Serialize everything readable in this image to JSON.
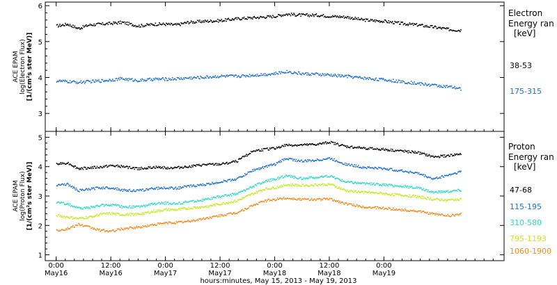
{
  "chart_data": [
    {
      "type": "scatter",
      "panel": "electron",
      "ylabel": [
        "ACE EPAM",
        "log(Electron Flux)",
        "[1/(cm²s ster MeV)]"
      ],
      "ylim": [
        2.5,
        6.1
      ],
      "yticks": [
        "3",
        "4",
        "5",
        "6"
      ],
      "xlim": [
        -0.1,
        4.1
      ],
      "legend": {
        "title": [
          "Electron",
          "Energy ran",
          "[keV]"
        ]
      },
      "series": [
        {
          "name": "38-53",
          "color": "#000000",
          "x": [
            0.0,
            0.1,
            0.2,
            0.3,
            0.4,
            0.5,
            0.6,
            0.75,
            0.9,
            1.0,
            1.1,
            1.2,
            1.35,
            1.5,
            1.65,
            1.8,
            1.9,
            2.0,
            2.1,
            2.25,
            2.4,
            2.5,
            2.65,
            2.8,
            3.0,
            3.15,
            3.3,
            3.45,
            3.6,
            3.7
          ],
          "y": [
            5.45,
            5.5,
            5.38,
            5.48,
            5.5,
            5.52,
            5.55,
            5.45,
            5.5,
            5.5,
            5.48,
            5.55,
            5.58,
            5.6,
            5.65,
            5.68,
            5.7,
            5.72,
            5.78,
            5.75,
            5.75,
            5.72,
            5.7,
            5.62,
            5.58,
            5.52,
            5.48,
            5.42,
            5.35,
            5.33
          ]
        },
        {
          "name": "175-315",
          "color": "#1e6fcf",
          "x": [
            0.0,
            0.1,
            0.2,
            0.3,
            0.4,
            0.5,
            0.6,
            0.75,
            0.9,
            1.0,
            1.1,
            1.2,
            1.35,
            1.5,
            1.65,
            1.8,
            1.9,
            2.0,
            2.1,
            2.25,
            2.4,
            2.5,
            2.65,
            2.8,
            3.0,
            3.15,
            3.3,
            3.45,
            3.6,
            3.7
          ],
          "y": [
            3.92,
            3.9,
            3.88,
            3.9,
            3.92,
            3.95,
            3.98,
            3.93,
            3.97,
            3.97,
            3.98,
            4.0,
            4.02,
            4.05,
            4.05,
            4.08,
            4.1,
            4.12,
            4.18,
            4.12,
            4.1,
            4.08,
            4.05,
            4.0,
            3.95,
            3.9,
            3.85,
            3.8,
            3.75,
            3.7
          ]
        }
      ]
    },
    {
      "type": "scatter",
      "panel": "proton",
      "ylabel": [
        "ACE EPAM",
        "log(Proton Flux)",
        "[1/(cm²s ster MeV)]"
      ],
      "ylim": [
        0.8,
        5.2
      ],
      "yticks": [
        "1",
        "2",
        "3",
        "4",
        "5"
      ],
      "xlim": [
        -0.1,
        4.1
      ],
      "legend": {
        "title": [
          "Proton",
          "Energy ran",
          "[keV]"
        ]
      },
      "series": [
        {
          "name": "47-68",
          "color": "#000000",
          "x": [
            0.0,
            0.1,
            0.2,
            0.3,
            0.4,
            0.5,
            0.6,
            0.75,
            0.9,
            1.0,
            1.1,
            1.2,
            1.35,
            1.5,
            1.65,
            1.8,
            1.9,
            2.0,
            2.1,
            2.25,
            2.4,
            2.5,
            2.65,
            2.8,
            3.0,
            3.15,
            3.3,
            3.45,
            3.6,
            3.7
          ],
          "y": [
            4.1,
            4.15,
            3.95,
            3.98,
            4.0,
            4.05,
            4.02,
            3.95,
            4.0,
            3.98,
            3.98,
            4.02,
            4.08,
            4.1,
            4.2,
            4.55,
            4.6,
            4.65,
            4.75,
            4.75,
            4.78,
            4.85,
            4.7,
            4.65,
            4.6,
            4.55,
            4.5,
            4.35,
            4.4,
            4.45
          ]
        },
        {
          "name": "115-195",
          "color": "#1e6fcf",
          "x": [
            0.0,
            0.1,
            0.2,
            0.3,
            0.4,
            0.5,
            0.6,
            0.75,
            0.9,
            1.0,
            1.1,
            1.2,
            1.35,
            1.5,
            1.65,
            1.8,
            1.9,
            2.0,
            2.1,
            2.25,
            2.4,
            2.5,
            2.65,
            2.8,
            3.0,
            3.15,
            3.3,
            3.45,
            3.6,
            3.7
          ],
          "y": [
            3.4,
            3.42,
            3.2,
            3.25,
            3.3,
            3.3,
            3.22,
            3.2,
            3.28,
            3.3,
            3.28,
            3.35,
            3.4,
            3.5,
            3.6,
            3.9,
            4.0,
            4.1,
            4.3,
            4.2,
            4.25,
            4.3,
            4.1,
            4.0,
            3.95,
            3.88,
            3.8,
            3.6,
            3.75,
            3.85
          ]
        },
        {
          "name": "310-580",
          "color": "#2ad8c4",
          "x": [
            0.0,
            0.1,
            0.2,
            0.3,
            0.4,
            0.5,
            0.6,
            0.75,
            0.9,
            1.0,
            1.1,
            1.2,
            1.35,
            1.5,
            1.65,
            1.8,
            1.9,
            2.0,
            2.1,
            2.25,
            2.4,
            2.5,
            2.65,
            2.8,
            3.0,
            3.15,
            3.3,
            3.45,
            3.6,
            3.7
          ],
          "y": [
            2.8,
            2.75,
            2.6,
            2.62,
            2.7,
            2.72,
            2.65,
            2.65,
            2.75,
            2.78,
            2.75,
            2.82,
            2.88,
            3.0,
            3.1,
            3.35,
            3.5,
            3.6,
            3.7,
            3.62,
            3.65,
            3.7,
            3.5,
            3.45,
            3.4,
            3.35,
            3.3,
            3.15,
            3.18,
            3.22
          ]
        },
        {
          "name": "795-1193",
          "color": "#c8e61e",
          "x": [
            0.0,
            0.1,
            0.2,
            0.3,
            0.4,
            0.5,
            0.6,
            0.75,
            0.9,
            1.0,
            1.1,
            1.2,
            1.35,
            1.5,
            1.65,
            1.8,
            1.9,
            2.0,
            2.1,
            2.25,
            2.4,
            2.5,
            2.65,
            2.8,
            3.0,
            3.15,
            3.3,
            3.45,
            3.6,
            3.7
          ],
          "y": [
            2.35,
            2.3,
            2.25,
            2.3,
            2.4,
            2.42,
            2.38,
            2.4,
            2.5,
            2.55,
            2.55,
            2.6,
            2.65,
            2.75,
            2.85,
            3.1,
            3.25,
            3.3,
            3.4,
            3.38,
            3.4,
            3.42,
            3.2,
            3.15,
            3.1,
            3.05,
            3.0,
            2.9,
            2.88,
            2.92
          ]
        },
        {
          "name": "1060-1900",
          "color": "#f08a1e",
          "x": [
            0.0,
            0.1,
            0.2,
            0.3,
            0.4,
            0.5,
            0.6,
            0.75,
            0.9,
            1.0,
            1.1,
            1.2,
            1.35,
            1.5,
            1.65,
            1.8,
            1.9,
            2.0,
            2.1,
            2.25,
            2.4,
            2.5,
            2.65,
            2.8,
            3.0,
            3.15,
            3.3,
            3.45,
            3.6,
            3.7
          ],
          "y": [
            1.85,
            1.9,
            2.05,
            1.95,
            1.85,
            1.82,
            1.9,
            1.95,
            2.05,
            2.1,
            2.12,
            2.15,
            2.25,
            2.35,
            2.45,
            2.7,
            2.85,
            2.9,
            2.95,
            2.9,
            2.9,
            2.92,
            2.75,
            2.65,
            2.6,
            2.55,
            2.5,
            2.4,
            2.35,
            2.4
          ]
        }
      ]
    }
  ],
  "x_axis": {
    "ticks": [
      {
        "time": "0:00",
        "date": "May16"
      },
      {
        "time": "12:00",
        "date": "May16"
      },
      {
        "time": "0:00",
        "date": "May17"
      },
      {
        "time": "12:00",
        "date": "May17"
      },
      {
        "time": "0:00",
        "date": "May18"
      },
      {
        "time": "12:00",
        "date": "May18"
      },
      {
        "time": "0:00",
        "date": "May19"
      }
    ],
    "title": "hours:minutes, May 15, 2013 - May 19, 2013"
  }
}
